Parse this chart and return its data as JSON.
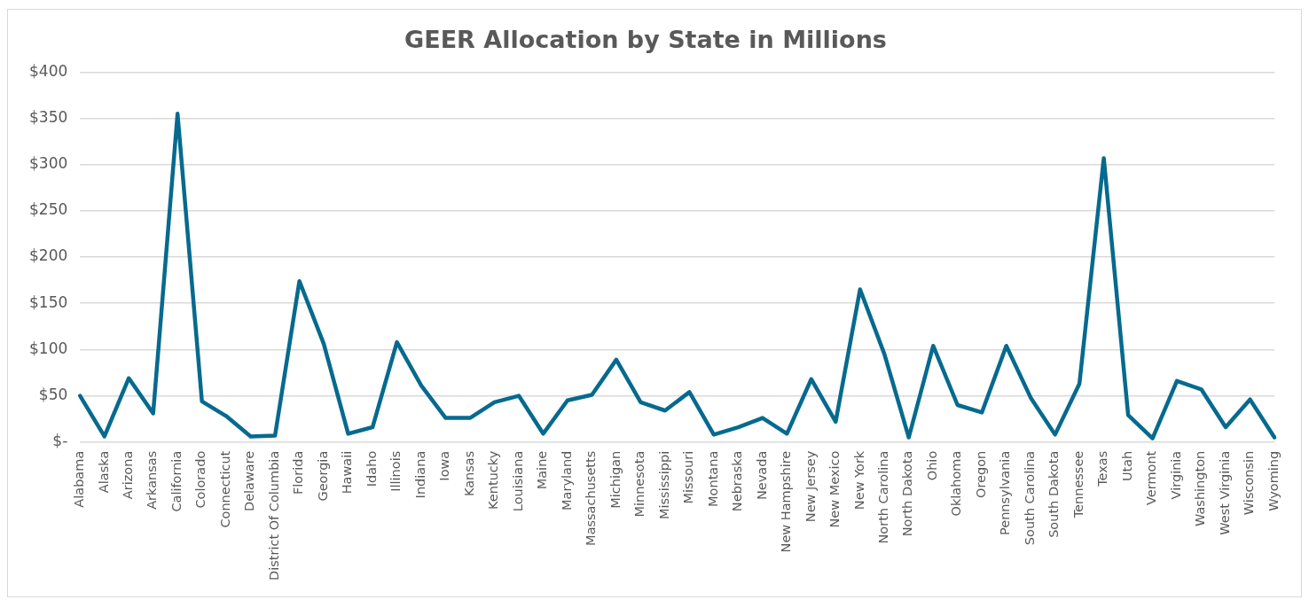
{
  "chart_data": {
    "type": "line",
    "title": "GEER Allocation by State in Millions",
    "categories": [
      "Alabama",
      "Alaska",
      "Arizona",
      "Arkansas",
      "California",
      "Colorado",
      "Connecticut",
      "Delaware",
      "District Of Columbia",
      "Florida",
      "Georgia",
      "Hawaii",
      "Idaho",
      "Illinois",
      "Indiana",
      "Iowa",
      "Kansas",
      "Kentucky",
      "Louisiana",
      "Maine",
      "Maryland",
      "Massachusetts",
      "Michigan",
      "Minnesota",
      "Mississippi",
      "Missouri",
      "Montana",
      "Nebraska",
      "Nevada",
      "New Hampshire",
      "New Jersey",
      "New Mexico",
      "New York",
      "North Carolina",
      "North Dakota",
      "Ohio",
      "Oklahoma",
      "Oregon",
      "Pennsylvania",
      "South Carolina",
      "South Dakota",
      "Tennessee",
      "Texas",
      "Utah",
      "Vermont",
      "Virginia",
      "Washington",
      "West Virginia",
      "Wisconsin",
      "Wyoming"
    ],
    "series": [
      {
        "color": "#066a8e",
        "values": [
          50,
          6,
          69,
          31,
          355,
          44,
          28,
          6,
          7,
          174,
          106,
          9,
          16,
          108,
          61,
          26,
          26,
          43,
          50,
          9,
          45,
          51,
          89,
          43,
          34,
          54,
          8,
          16,
          26,
          9,
          68,
          22,
          165,
          95,
          5,
          104,
          40,
          32,
          104,
          48,
          8,
          63,
          307,
          29,
          4,
          66,
          57,
          16,
          46,
          5
        ]
      }
    ],
    "ylim": [
      0,
      400
    ],
    "yticks": [
      {
        "value": 0,
        "label": "$-"
      },
      {
        "value": 50,
        "label": "$50"
      },
      {
        "value": 100,
        "label": "$100"
      },
      {
        "value": 150,
        "label": "$150"
      },
      {
        "value": 200,
        "label": "$200"
      },
      {
        "value": 250,
        "label": "$250"
      },
      {
        "value": 300,
        "label": "$300"
      },
      {
        "value": 350,
        "label": "$350"
      },
      {
        "value": 400,
        "label": "$400"
      }
    ],
    "grid": "y",
    "legend": false,
    "marker": "none",
    "line_style": "solid"
  }
}
